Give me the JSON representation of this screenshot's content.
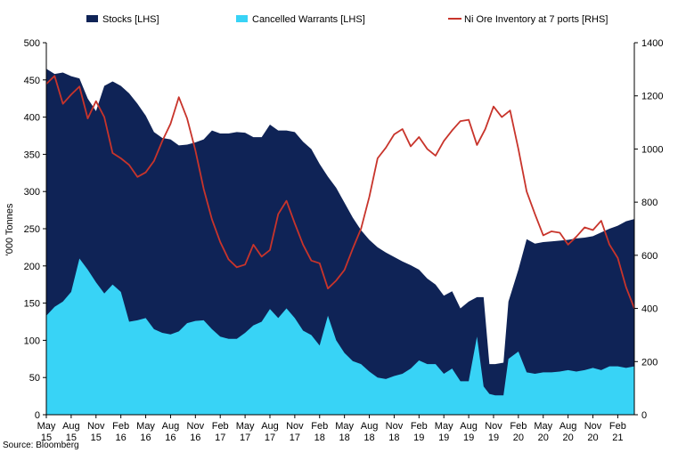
{
  "chart_data": {
    "type": "area",
    "title": "",
    "ylabel_left": "'000 Tonnes",
    "ylabel_right": "",
    "ylim_left": [
      0,
      500
    ],
    "ylim_right": [
      0,
      1400
    ],
    "yticks_left": [
      "0",
      "50",
      "100",
      "150",
      "200",
      "250",
      "300",
      "350",
      "400",
      "450",
      "500"
    ],
    "yticks_right": [
      "0",
      "200",
      "400",
      "600",
      "800",
      "1000",
      "1200",
      "1400"
    ],
    "x_ticks": [
      {
        "month": "May",
        "year": "15",
        "i": 0
      },
      {
        "month": "Aug",
        "year": "15",
        "i": 3
      },
      {
        "month": "Nov",
        "year": "15",
        "i": 6
      },
      {
        "month": "Feb",
        "year": "16",
        "i": 9
      },
      {
        "month": "May",
        "year": "16",
        "i": 12
      },
      {
        "month": "Aug",
        "year": "16",
        "i": 15
      },
      {
        "month": "Nov",
        "year": "16",
        "i": 18
      },
      {
        "month": "Feb",
        "year": "17",
        "i": 21
      },
      {
        "month": "May",
        "year": "17",
        "i": 24
      },
      {
        "month": "Aug",
        "year": "17",
        "i": 27
      },
      {
        "month": "Nov",
        "year": "17",
        "i": 30
      },
      {
        "month": "Feb",
        "year": "18",
        "i": 33
      },
      {
        "month": "May",
        "year": "18",
        "i": 36
      },
      {
        "month": "Aug",
        "year": "18",
        "i": 39
      },
      {
        "month": "Nov",
        "year": "18",
        "i": 42
      },
      {
        "month": "Feb",
        "year": "19",
        "i": 45
      },
      {
        "month": "May",
        "year": "19",
        "i": 48
      },
      {
        "month": "Aug",
        "year": "19",
        "i": 51
      },
      {
        "month": "Nov",
        "year": "19",
        "i": 54
      },
      {
        "month": "Feb",
        "year": "20",
        "i": 57
      },
      {
        "month": "May",
        "year": "20",
        "i": 60
      },
      {
        "month": "Aug",
        "year": "20",
        "i": 63
      },
      {
        "month": "Nov",
        "year": "20",
        "i": 66
      },
      {
        "month": "Feb",
        "year": "21",
        "i": 69
      }
    ],
    "x_domain": [
      0,
      71
    ],
    "series": [
      {
        "name": "Stocks [LHS]",
        "axis": "left",
        "kind": "area",
        "color": "#0f2356",
        "x": [
          0,
          1,
          2,
          3,
          4,
          5,
          6,
          7,
          8,
          9,
          10,
          11,
          12,
          13,
          14,
          15,
          16,
          17,
          18,
          19,
          20,
          21,
          22,
          23,
          24,
          25,
          26,
          27,
          28,
          29,
          30,
          31,
          32,
          33,
          34,
          35,
          36,
          37,
          38,
          39,
          40,
          41,
          42,
          43,
          44,
          45,
          46,
          47,
          48,
          49,
          50,
          51,
          52,
          52.8,
          53.5,
          54.2,
          55.2,
          55.8,
          57,
          58,
          59,
          60,
          61,
          62,
          63,
          64,
          65,
          66,
          67,
          68,
          69,
          70,
          71
        ],
        "values": [
          465,
          458,
          460,
          455,
          452,
          425,
          408,
          442,
          448,
          442,
          432,
          418,
          402,
          380,
          372,
          370,
          362,
          363,
          366,
          370,
          382,
          378,
          378,
          380,
          379,
          373,
          373,
          390,
          382,
          382,
          380,
          367,
          357,
          337,
          320,
          305,
          285,
          265,
          248,
          235,
          225,
          218,
          212,
          206,
          201,
          195,
          183,
          175,
          160,
          166,
          143,
          152,
          158,
          158,
          68,
          68,
          70,
          152,
          195,
          236,
          230,
          232,
          233,
          234,
          235,
          237,
          238,
          240,
          245,
          250,
          254,
          260,
          263
        ]
      },
      {
        "name": "Cancelled Warrants [LHS]",
        "axis": "left",
        "kind": "area",
        "color": "#38d3f6",
        "x": [
          0,
          1,
          2,
          3,
          4,
          5,
          6,
          7,
          8,
          9,
          10,
          11,
          12,
          13,
          14,
          15,
          16,
          17,
          18,
          19,
          20,
          21,
          22,
          23,
          24,
          25,
          26,
          27,
          28,
          29,
          30,
          31,
          32,
          33,
          34,
          35,
          36,
          37,
          38,
          39,
          40,
          41,
          42,
          43,
          44,
          45,
          46,
          47,
          48,
          49,
          50,
          51,
          52,
          52.8,
          53.5,
          54.2,
          55.2,
          55.8,
          57,
          58,
          59,
          60,
          61,
          62,
          63,
          64,
          65,
          66,
          67,
          68,
          69,
          70,
          71
        ],
        "values": [
          133,
          145,
          152,
          165,
          210,
          195,
          178,
          163,
          175,
          165,
          125,
          127,
          130,
          115,
          110,
          108,
          112,
          123,
          126,
          127,
          115,
          105,
          102,
          102,
          110,
          120,
          125,
          142,
          130,
          143,
          130,
          113,
          107,
          93,
          133,
          100,
          83,
          72,
          68,
          58,
          50,
          48,
          52,
          55,
          62,
          73,
          68,
          68,
          55,
          62,
          45,
          45,
          105,
          38,
          28,
          26,
          26,
          75,
          85,
          57,
          55,
          57,
          57,
          58,
          60,
          58,
          60,
          63,
          60,
          65,
          65,
          63,
          65
        ]
      },
      {
        "name": "Ni Ore Inventory at 7 ports [RHS]",
        "axis": "right",
        "kind": "line",
        "color": "#c8342b",
        "x": [
          0,
          1,
          2,
          3,
          4,
          5,
          6,
          7,
          8,
          9,
          10,
          11,
          12,
          13,
          14,
          15,
          16,
          17,
          18,
          19,
          20,
          21,
          22,
          23,
          24,
          25,
          26,
          27,
          28,
          29,
          30,
          31,
          32,
          33,
          34,
          35,
          36,
          37,
          38,
          39,
          40,
          41,
          42,
          43,
          44,
          45,
          46,
          47,
          48,
          49,
          50,
          51,
          52,
          53,
          54,
          55,
          56,
          57,
          58,
          59,
          60,
          61,
          62,
          63,
          64,
          65,
          66,
          67,
          68,
          69,
          70,
          71
        ],
        "values": [
          1245,
          1275,
          1170,
          1205,
          1235,
          1115,
          1180,
          1120,
          985,
          965,
          940,
          895,
          912,
          955,
          1030,
          1095,
          1195,
          1115,
          995,
          850,
          735,
          650,
          585,
          555,
          565,
          640,
          595,
          620,
          755,
          805,
          720,
          640,
          580,
          570,
          475,
          505,
          545,
          625,
          700,
          820,
          965,
          1005,
          1055,
          1075,
          1010,
          1045,
          1000,
          975,
          1030,
          1070,
          1105,
          1110,
          1015,
          1075,
          1160,
          1120,
          1145,
          1000,
          840,
          755,
          675,
          690,
          685,
          640,
          670,
          705,
          695,
          730,
          640,
          590,
          480,
          400
        ]
      }
    ],
    "legend": [
      {
        "label": "Stocks [LHS]",
        "kind": "swatch",
        "color": "#0f2356"
      },
      {
        "label": "Cancelled Warrants [LHS]",
        "kind": "swatch",
        "color": "#38d3f6"
      },
      {
        "label": "Ni Ore Inventory at 7 ports [RHS]",
        "kind": "line",
        "color": "#c8342b"
      }
    ],
    "legend_position": "top",
    "grid": false,
    "source": "Source: Bloomberg"
  }
}
